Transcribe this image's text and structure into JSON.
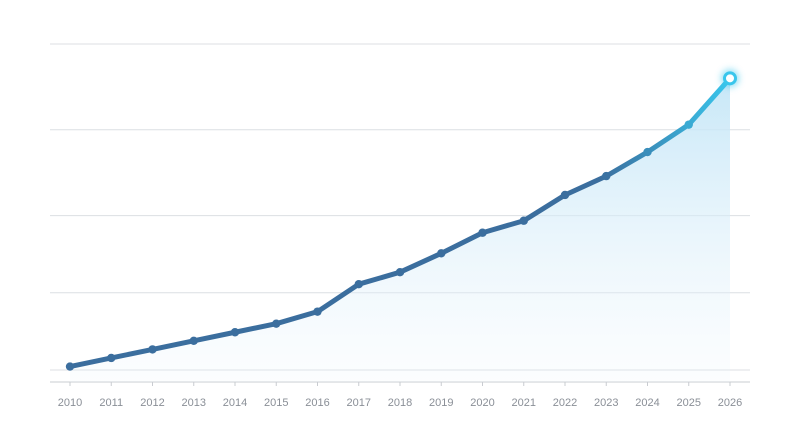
{
  "chart_data": {
    "type": "line",
    "x": [
      "2010",
      "2011",
      "2012",
      "2013",
      "2014",
      "2015",
      "2016",
      "2017",
      "2018",
      "2019",
      "2020",
      "2021",
      "2022",
      "2023",
      "2024",
      "2025",
      "2026"
    ],
    "series": [
      {
        "values": [
          2,
          7,
          12,
          17,
          22,
          27,
          34,
          50,
          57,
          68,
          80,
          87,
          102,
          113,
          127,
          143,
          170
        ],
        "color": "#3b6e9e",
        "highlight_color": "#39c6ec"
      }
    ],
    "ylim": [
      -7,
      190
    ],
    "y_gridlines": [
      0,
      45,
      90,
      140,
      190
    ],
    "y_tick_labels_shown": false,
    "grid": true,
    "area_fill": true,
    "highlight_last_point": true
  }
}
